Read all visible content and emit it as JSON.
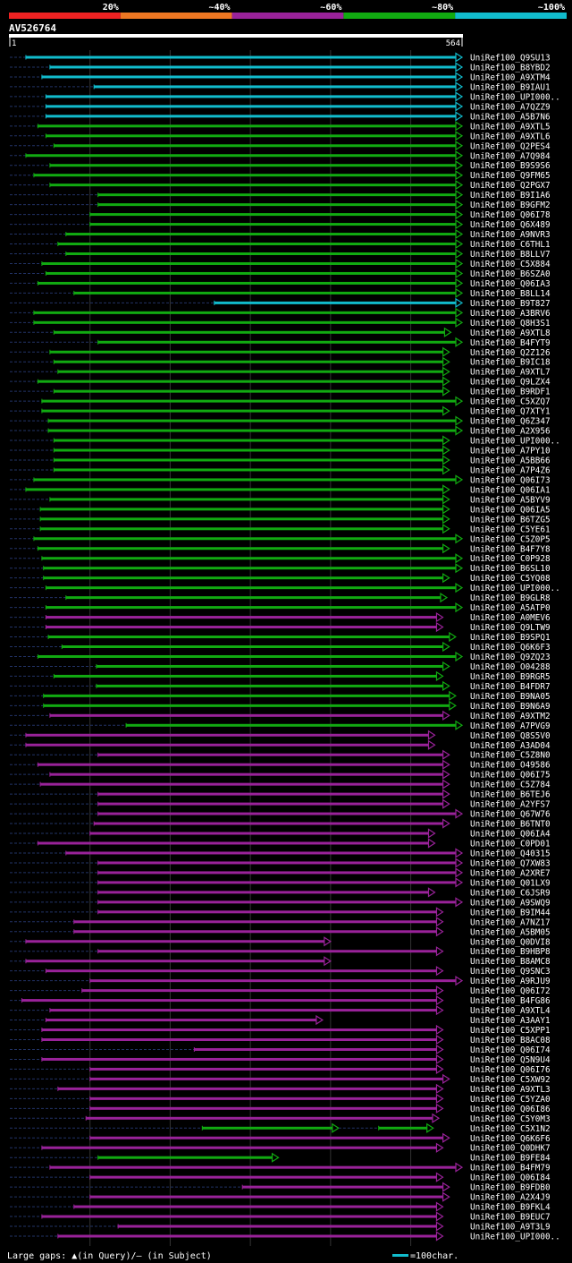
{
  "chart_data": {
    "type": "alignment-overview",
    "title": "AV526764",
    "query_length": 564,
    "query_start_label": "1",
    "query_end_label": "564",
    "identity_legend": [
      {
        "label": "20%",
        "color": "#ee2222"
      },
      {
        "label": "~40%",
        "color": "#ee7722"
      },
      {
        "label": "~60%",
        "color": "#992299"
      },
      {
        "label": "~80%",
        "color": "#11aa11"
      },
      {
        "label": "~100%",
        "color": "#11bbcc"
      }
    ],
    "footer": {
      "gaps_label": "Large gaps: ▲(in Query)/– (in Subject)",
      "scale_label": "=100char."
    },
    "hits": [
      {
        "name": "UniRef100_Q9SU13",
        "id": 5,
        "start": 20,
        "end": 564,
        "arrow": true
      },
      {
        "name": "UniRef100_B8YBD2",
        "id": 5,
        "start": 50,
        "end": 564,
        "arrow": true
      },
      {
        "name": "UniRef100_A9XTM4",
        "id": 5,
        "start": 40,
        "end": 564,
        "arrow": true
      },
      {
        "name": "UniRef100_B9IAU1",
        "id": 5,
        "start": 105,
        "end": 564,
        "arrow": true
      },
      {
        "name": "UniRef100_UPI000..",
        "id": 5,
        "start": 45,
        "end": 564,
        "arrow": true
      },
      {
        "name": "UniRef100_A7QZZ9",
        "id": 5,
        "start": 45,
        "end": 564,
        "arrow": true
      },
      {
        "name": "UniRef100_A5B7N6",
        "id": 5,
        "start": 45,
        "end": 564,
        "arrow": true
      },
      {
        "name": "UniRef100_A9XTL5",
        "id": 4,
        "start": 35,
        "end": 564,
        "arrow": true
      },
      {
        "name": "UniRef100_A9XTL6",
        "id": 4,
        "start": 45,
        "end": 564,
        "arrow": true
      },
      {
        "name": "UniRef100_Q2PES4",
        "id": 4,
        "start": 55,
        "end": 564,
        "arrow": true
      },
      {
        "name": "UniRef100_A7Q984",
        "id": 4,
        "start": 20,
        "end": 564,
        "arrow": true
      },
      {
        "name": "UniRef100_B9S9S6",
        "id": 4,
        "start": 50,
        "end": 564,
        "arrow": true
      },
      {
        "name": "UniRef100_Q9FM65",
        "id": 4,
        "start": 30,
        "end": 564,
        "arrow": true
      },
      {
        "name": "UniRef100_Q2PGX7",
        "id": 4,
        "start": 50,
        "end": 564,
        "arrow": true
      },
      {
        "name": "UniRef100_B9I1A6",
        "id": 4,
        "start": 110,
        "end": 564,
        "arrow": true
      },
      {
        "name": "UniRef100_B9GFM2",
        "id": 4,
        "start": 110,
        "end": 564,
        "arrow": true
      },
      {
        "name": "UniRef100_Q06I78",
        "id": 4,
        "start": 100,
        "end": 564,
        "arrow": true
      },
      {
        "name": "UniRef100_Q6X489",
        "id": 4,
        "start": 100,
        "end": 564,
        "arrow": true
      },
      {
        "name": "UniRef100_A9NVR3",
        "id": 4,
        "start": 70,
        "end": 564,
        "arrow": true
      },
      {
        "name": "UniRef100_C6THL1",
        "id": 4,
        "start": 60,
        "end": 564,
        "arrow": true
      },
      {
        "name": "UniRef100_B8LLV7",
        "id": 4,
        "start": 70,
        "end": 564,
        "arrow": true
      },
      {
        "name": "UniRef100_C5X884",
        "id": 4,
        "start": 40,
        "end": 564,
        "arrow": true
      },
      {
        "name": "UniRef100_B6SZA0",
        "id": 4,
        "start": 45,
        "end": 564,
        "arrow": true
      },
      {
        "name": "UniRef100_Q06IA3",
        "id": 4,
        "start": 35,
        "end": 564,
        "arrow": true
      },
      {
        "name": "UniRef100_B8LL14",
        "id": 4,
        "start": 80,
        "end": 564,
        "arrow": true
      },
      {
        "name": "UniRef100_B9T827",
        "id": 5,
        "start": 255,
        "end": 564,
        "arrow": true
      },
      {
        "name": "UniRef100_A3BRV6",
        "id": 4,
        "start": 30,
        "end": 564,
        "arrow": true
      },
      {
        "name": "UniRef100_Q8H3S1",
        "id": 4,
        "start": 30,
        "end": 564,
        "arrow": true
      },
      {
        "name": "UniRef100_A9XTL8",
        "id": 4,
        "start": 55,
        "end": 550,
        "arrow": true
      },
      {
        "name": "UniRef100_B4FYT9",
        "id": 4,
        "start": 110,
        "end": 564,
        "arrow": true
      },
      {
        "name": "UniRef100_Q2Z126",
        "id": 4,
        "start": 50,
        "end": 548,
        "arrow": true
      },
      {
        "name": "UniRef100_B9IC18",
        "id": 4,
        "start": 55,
        "end": 548,
        "arrow": true
      },
      {
        "name": "UniRef100_A9XTL7",
        "id": 4,
        "start": 60,
        "end": 548,
        "arrow": true
      },
      {
        "name": "UniRef100_Q9LZX4",
        "id": 4,
        "start": 35,
        "end": 548,
        "arrow": true
      },
      {
        "name": "UniRef100_B9RDF1",
        "id": 4,
        "start": 55,
        "end": 548,
        "arrow": true
      },
      {
        "name": "UniRef100_C5XZQ7",
        "id": 4,
        "start": 40,
        "end": 564,
        "arrow": true
      },
      {
        "name": "UniRef100_Q7XTY1",
        "id": 4,
        "start": 40,
        "end": 548,
        "arrow": true
      },
      {
        "name": "UniRef100_Q6Z347",
        "id": 4,
        "start": 48,
        "end": 564,
        "arrow": true
      },
      {
        "name": "UniRef100_A2X956",
        "id": 4,
        "start": 48,
        "end": 564,
        "arrow": true
      },
      {
        "name": "UniRef100_UPI000..",
        "id": 4,
        "start": 55,
        "end": 548,
        "arrow": true
      },
      {
        "name": "UniRef100_A7PY10",
        "id": 4,
        "start": 55,
        "end": 548,
        "arrow": true
      },
      {
        "name": "UniRef100_A5BB66",
        "id": 4,
        "start": 55,
        "end": 548,
        "arrow": true
      },
      {
        "name": "UniRef100_A7P4Z6",
        "id": 4,
        "start": 55,
        "end": 548,
        "arrow": true
      },
      {
        "name": "UniRef100_Q06I73",
        "id": 4,
        "start": 30,
        "end": 564,
        "arrow": true
      },
      {
        "name": "UniRef100_Q06IA1",
        "id": 4,
        "start": 20,
        "end": 548,
        "arrow": true
      },
      {
        "name": "UniRef100_A5BYV9",
        "id": 4,
        "start": 50,
        "end": 548,
        "arrow": true
      },
      {
        "name": "UniRef100_Q06IA5",
        "id": 4,
        "start": 38,
        "end": 548,
        "arrow": true
      },
      {
        "name": "UniRef100_B6TZG5",
        "id": 4,
        "start": 38,
        "end": 548,
        "arrow": true
      },
      {
        "name": "UniRef100_C5YE61",
        "id": 4,
        "start": 38,
        "end": 548,
        "arrow": true
      },
      {
        "name": "UniRef100_C5Z0P5",
        "id": 4,
        "start": 30,
        "end": 564,
        "arrow": true
      },
      {
        "name": "UniRef100_B4F7Y8",
        "id": 4,
        "start": 35,
        "end": 548,
        "arrow": true
      },
      {
        "name": "UniRef100_C0P928",
        "id": 4,
        "start": 40,
        "end": 564,
        "arrow": true
      },
      {
        "name": "UniRef100_B6SL10",
        "id": 4,
        "start": 42,
        "end": 564,
        "arrow": true
      },
      {
        "name": "UniRef100_C5YQ08",
        "id": 4,
        "start": 42,
        "end": 548,
        "arrow": true
      },
      {
        "name": "UniRef100_UPI000..",
        "id": 4,
        "start": 45,
        "end": 564,
        "arrow": true
      },
      {
        "name": "UniRef100_B9GLR8",
        "id": 4,
        "start": 70,
        "end": 545,
        "arrow": true
      },
      {
        "name": "UniRef100_A5ATP0",
        "id": 4,
        "start": 45,
        "end": 564,
        "arrow": true
      },
      {
        "name": "UniRef100_A0MEV6",
        "id": 3,
        "start": 45,
        "end": 540,
        "arrow": true
      },
      {
        "name": "UniRef100_Q9LTW9",
        "id": 3,
        "start": 45,
        "end": 540,
        "arrow": true
      },
      {
        "name": "UniRef100_B9SPQ1",
        "id": 4,
        "start": 48,
        "end": 556,
        "arrow": true
      },
      {
        "name": "UniRef100_Q6K6F3",
        "id": 4,
        "start": 65,
        "end": 548,
        "arrow": true
      },
      {
        "name": "UniRef100_Q9ZQ23",
        "id": 4,
        "start": 35,
        "end": 564,
        "arrow": true
      },
      {
        "name": "UniRef100_O04288",
        "id": 4,
        "start": 108,
        "end": 548,
        "arrow": true
      },
      {
        "name": "UniRef100_B9RGR5",
        "id": 4,
        "start": 55,
        "end": 540,
        "arrow": true
      },
      {
        "name": "UniRef100_B4FDR7",
        "id": 4,
        "start": 108,
        "end": 548,
        "arrow": true
      },
      {
        "name": "UniRef100_B9NA05",
        "id": 4,
        "start": 42,
        "end": 556,
        "arrow": true
      },
      {
        "name": "UniRef100_B9N6A9",
        "id": 4,
        "start": 42,
        "end": 556,
        "arrow": true
      },
      {
        "name": "UniRef100_A9XTM2",
        "id": 3,
        "start": 50,
        "end": 548,
        "arrow": true
      },
      {
        "name": "UniRef100_A7PVG9",
        "id": 4,
        "start": 145,
        "end": 564,
        "arrow": true
      },
      {
        "name": "UniRef100_Q8S5V0",
        "id": 3,
        "start": 20,
        "end": 530,
        "arrow": true
      },
      {
        "name": "UniRef100_A3AD04",
        "id": 3,
        "start": 20,
        "end": 530,
        "arrow": true
      },
      {
        "name": "UniRef100_C5Z8N0",
        "id": 3,
        "start": 110,
        "end": 548,
        "arrow": true
      },
      {
        "name": "UniRef100_O49586",
        "id": 3,
        "start": 35,
        "end": 548,
        "arrow": true
      },
      {
        "name": "UniRef100_Q06I75",
        "id": 3,
        "start": 50,
        "end": 548,
        "arrow": true
      },
      {
        "name": "UniRef100_C5Z784",
        "id": 3,
        "start": 38,
        "end": 548,
        "arrow": true
      },
      {
        "name": "UniRef100_B6TEJ6",
        "id": 3,
        "start": 110,
        "end": 548,
        "arrow": true
      },
      {
        "name": "UniRef100_A2YFS7",
        "id": 3,
        "start": 110,
        "end": 548,
        "arrow": true
      },
      {
        "name": "UniRef100_Q67W76",
        "id": 3,
        "start": 110,
        "end": 564,
        "arrow": true
      },
      {
        "name": "UniRef100_B6TNT0",
        "id": 3,
        "start": 105,
        "end": 548,
        "arrow": true
      },
      {
        "name": "UniRef100_Q06IA4",
        "id": 3,
        "start": 100,
        "end": 530,
        "arrow": true
      },
      {
        "name": "UniRef100_C0PD01",
        "id": 3,
        "start": 35,
        "end": 530,
        "arrow": true
      },
      {
        "name": "UniRef100_Q40315",
        "id": 3,
        "start": 70,
        "end": 564,
        "arrow": true
      },
      {
        "name": "UniRef100_Q7XW83",
        "id": 3,
        "start": 110,
        "end": 564,
        "arrow": true
      },
      {
        "name": "UniRef100_A2XRE7",
        "id": 3,
        "start": 110,
        "end": 564,
        "arrow": true
      },
      {
        "name": "UniRef100_Q01LX9",
        "id": 3,
        "start": 110,
        "end": 564,
        "arrow": true
      },
      {
        "name": "UniRef100_C6JSR9",
        "id": 3,
        "start": 110,
        "end": 530,
        "arrow": true
      },
      {
        "name": "UniRef100_A9SWQ9",
        "id": 3,
        "start": 110,
        "end": 564,
        "arrow": true
      },
      {
        "name": "UniRef100_B9IM44",
        "id": 3,
        "start": 110,
        "end": 540,
        "arrow": true
      },
      {
        "name": "UniRef100_A7NZ17",
        "id": 3,
        "start": 80,
        "end": 540,
        "arrow": true
      },
      {
        "name": "UniRef100_A5BM05",
        "id": 3,
        "start": 80,
        "end": 540,
        "arrow": true
      },
      {
        "name": "UniRef100_Q0DVI8",
        "id": 3,
        "start": 20,
        "end": 400,
        "arrow": true
      },
      {
        "name": "UniRef100_B9HBP8",
        "id": 3,
        "start": 110,
        "end": 540,
        "arrow": true
      },
      {
        "name": "UniRef100_B8AMC8",
        "id": 3,
        "start": 20,
        "end": 400,
        "arrow": true
      },
      {
        "name": "UniRef100_Q9SNC3",
        "id": 3,
        "start": 45,
        "end": 540,
        "arrow": true
      },
      {
        "name": "UniRef100_A9RJU9",
        "id": 3,
        "start": 100,
        "end": 564,
        "arrow": true
      },
      {
        "name": "UniRef100_Q06I72",
        "id": 3,
        "start": 90,
        "end": 540,
        "arrow": true
      },
      {
        "name": "UniRef100_B4FG86",
        "id": 3,
        "start": 15,
        "end": 540,
        "arrow": true
      },
      {
        "name": "UniRef100_A9XTL4",
        "id": 3,
        "start": 50,
        "end": 540,
        "arrow": true
      },
      {
        "name": "UniRef100_A3AAY1",
        "id": 3,
        "start": 45,
        "end": 390,
        "arrow": true
      },
      {
        "name": "UniRef100_C5XPP1",
        "id": 3,
        "start": 40,
        "end": 540,
        "arrow": true
      },
      {
        "name": "UniRef100_B8AC08",
        "id": 3,
        "start": 40,
        "end": 540,
        "arrow": true
      },
      {
        "name": "UniRef100_Q06I74",
        "id": 3,
        "start": 230,
        "end": 540,
        "arrow": true
      },
      {
        "name": "UniRef100_Q5N9U4",
        "id": 3,
        "start": 40,
        "end": 540,
        "arrow": true
      },
      {
        "name": "UniRef100_Q06I76",
        "id": 3,
        "start": 100,
        "end": 540,
        "arrow": true
      },
      {
        "name": "UniRef100_C5XW92",
        "id": 3,
        "start": 100,
        "end": 548,
        "arrow": true
      },
      {
        "name": "UniRef100_A9XTL3",
        "id": 3,
        "start": 60,
        "end": 540,
        "arrow": true
      },
      {
        "name": "UniRef100_C5YZA0",
        "id": 3,
        "start": 100,
        "end": 540,
        "arrow": true
      },
      {
        "name": "UniRef100_Q06I86",
        "id": 3,
        "start": 100,
        "end": 540,
        "arrow": true
      },
      {
        "name": "UniRef100_C5Y0M3",
        "id": 3,
        "start": 95,
        "end": 535,
        "arrow": true
      },
      {
        "name": "UniRef100_C5X1N2",
        "id": 4,
        "start": 240,
        "end": 410,
        "arrow": true,
        "second_start": 460,
        "second_end": 528
      },
      {
        "name": "UniRef100_Q6K6F6",
        "id": 3,
        "start": 100,
        "end": 548,
        "arrow": true
      },
      {
        "name": "UniRef100_Q0DHK7",
        "id": 3,
        "start": 40,
        "end": 540,
        "arrow": true
      },
      {
        "name": "UniRef100_B9FE84",
        "id": 4,
        "start": 110,
        "end": 335,
        "arrow": true
      },
      {
        "name": "UniRef100_B4FM79",
        "id": 3,
        "start": 50,
        "end": 564,
        "arrow": true
      },
      {
        "name": "UniRef100_Q06I84",
        "id": 3,
        "start": 100,
        "end": 540,
        "arrow": true
      },
      {
        "name": "UniRef100_B9FDB0",
        "id": 3,
        "start": 290,
        "end": 548,
        "arrow": true
      },
      {
        "name": "UniRef100_A2X4J9",
        "id": 3,
        "start": 100,
        "end": 548,
        "arrow": true
      },
      {
        "name": "UniRef100_B9FKL4",
        "id": 3,
        "start": 80,
        "end": 540,
        "arrow": true
      },
      {
        "name": "UniRef100_B9EUC7",
        "id": 3,
        "start": 40,
        "end": 540,
        "arrow": true
      },
      {
        "name": "UniRef100_A9T3L9",
        "id": 3,
        "start": 135,
        "end": 540,
        "arrow": true
      },
      {
        "name": "UniRef100_UPI000..",
        "id": 3,
        "start": 60,
        "end": 540,
        "arrow": true
      }
    ]
  }
}
